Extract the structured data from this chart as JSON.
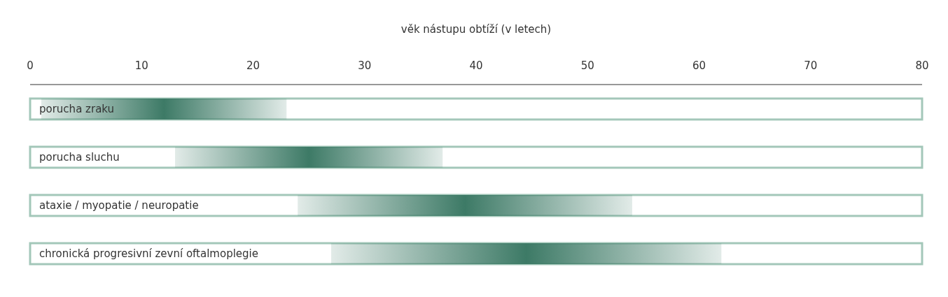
{
  "chart_data": {
    "type": "bar",
    "orientation": "horizontal",
    "xlabel": "věk nástupu obtíží (v letech)",
    "categories": [
      "porucha zraku",
      "porucha sluchu",
      "ataxie / myopatie / neuropatie",
      "chronická progresivní zevní oftalmoplegie"
    ],
    "base": [
      1,
      13,
      24,
      27
    ],
    "values": [
      22,
      24,
      30,
      35
    ],
    "color": "#3d7a66",
    "xlim": [
      0,
      80
    ],
    "xticks": [
      0,
      10,
      20,
      30,
      40,
      50,
      60,
      70,
      80
    ],
    "grid": false,
    "legend": false
  }
}
